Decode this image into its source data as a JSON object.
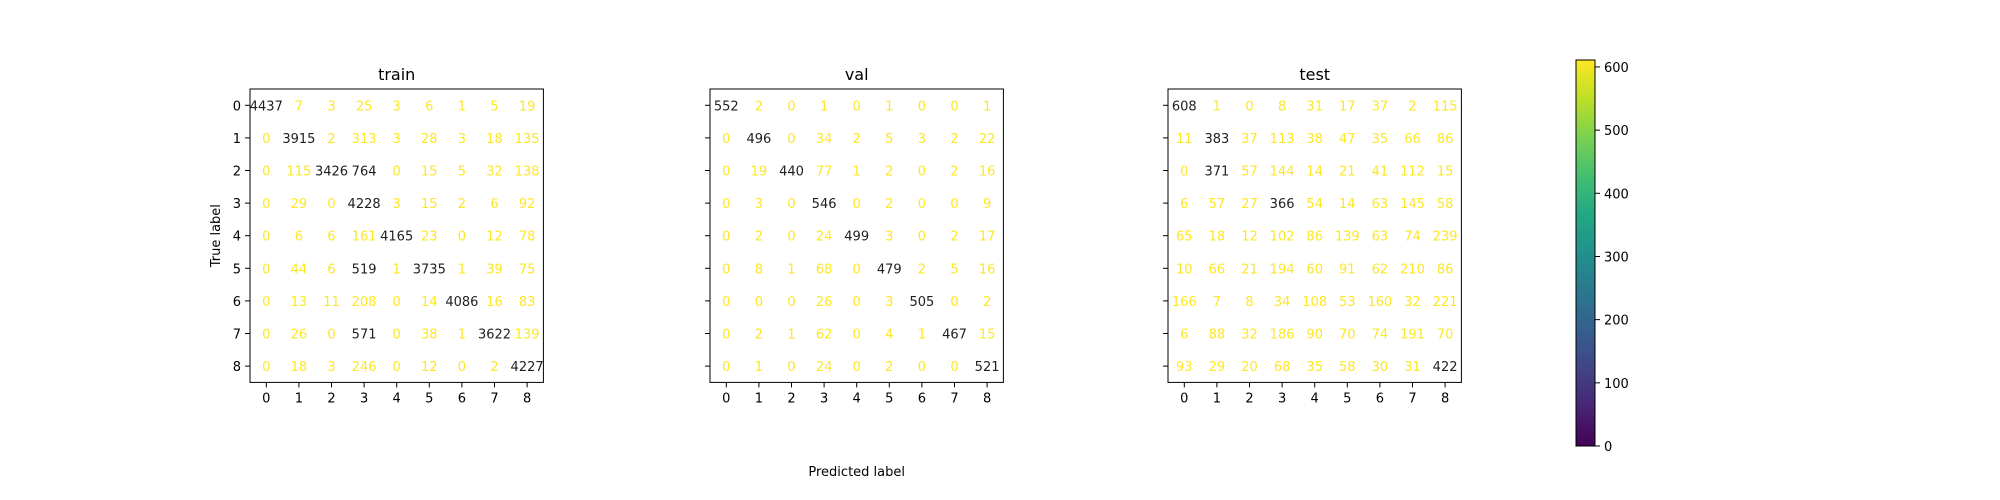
{
  "chart_data": [
    {
      "type": "heatmap",
      "title": "train",
      "x_ticks": [
        "0",
        "1",
        "2",
        "3",
        "4",
        "5",
        "6",
        "7",
        "8"
      ],
      "y_ticks": [
        "0",
        "1",
        "2",
        "3",
        "4",
        "5",
        "6",
        "7",
        "8"
      ],
      "xlabel": "",
      "ylabel": "True label",
      "matrix": [
        [
          4437,
          7,
          3,
          25,
          3,
          6,
          1,
          5,
          19
        ],
        [
          0,
          3915,
          2,
          313,
          3,
          28,
          3,
          18,
          135
        ],
        [
          0,
          115,
          3426,
          764,
          0,
          15,
          5,
          32,
          138
        ],
        [
          0,
          29,
          0,
          4228,
          3,
          15,
          2,
          6,
          92
        ],
        [
          0,
          6,
          6,
          161,
          4165,
          23,
          0,
          12,
          78
        ],
        [
          0,
          44,
          6,
          519,
          1,
          3735,
          1,
          39,
          75
        ],
        [
          0,
          13,
          11,
          208,
          0,
          14,
          4086,
          16,
          83
        ],
        [
          0,
          26,
          0,
          571,
          0,
          38,
          1,
          3622,
          139
        ],
        [
          0,
          18,
          3,
          246,
          0,
          12,
          0,
          2,
          4227
        ]
      ]
    },
    {
      "type": "heatmap",
      "title": "val",
      "x_ticks": [
        "0",
        "1",
        "2",
        "3",
        "4",
        "5",
        "6",
        "7",
        "8"
      ],
      "y_ticks": [],
      "xlabel": "Predicted label",
      "ylabel": "",
      "matrix": [
        [
          552,
          2,
          0,
          1,
          0,
          1,
          0,
          0,
          1
        ],
        [
          0,
          496,
          0,
          34,
          2,
          5,
          3,
          2,
          22
        ],
        [
          0,
          19,
          440,
          77,
          1,
          2,
          0,
          2,
          16
        ],
        [
          0,
          3,
          0,
          546,
          0,
          2,
          0,
          0,
          9
        ],
        [
          0,
          2,
          0,
          24,
          499,
          3,
          0,
          2,
          17
        ],
        [
          0,
          8,
          1,
          68,
          0,
          479,
          2,
          5,
          16
        ],
        [
          0,
          0,
          0,
          26,
          0,
          3,
          505,
          0,
          2
        ],
        [
          0,
          2,
          1,
          62,
          0,
          4,
          1,
          467,
          15
        ],
        [
          0,
          1,
          0,
          24,
          0,
          2,
          0,
          0,
          521
        ]
      ]
    },
    {
      "type": "heatmap",
      "title": "test",
      "x_ticks": [
        "0",
        "1",
        "2",
        "3",
        "4",
        "5",
        "6",
        "7",
        "8"
      ],
      "y_ticks": [],
      "xlabel": "",
      "ylabel": "",
      "matrix": [
        [
          608,
          1,
          0,
          8,
          31,
          17,
          37,
          2,
          115
        ],
        [
          11,
          383,
          37,
          113,
          38,
          47,
          35,
          66,
          86
        ],
        [
          0,
          371,
          57,
          144,
          14,
          21,
          41,
          112,
          15
        ],
        [
          6,
          57,
          27,
          366,
          54,
          14,
          63,
          145,
          58
        ],
        [
          65,
          18,
          12,
          102,
          86,
          139,
          63,
          74,
          239
        ],
        [
          10,
          66,
          21,
          194,
          60,
          91,
          62,
          210,
          86
        ],
        [
          166,
          7,
          8,
          34,
          108,
          53,
          160,
          32,
          221
        ],
        [
          6,
          88,
          32,
          186,
          90,
          70,
          74,
          191,
          70
        ],
        [
          93,
          29,
          20,
          68,
          35,
          58,
          30,
          31,
          422
        ]
      ]
    }
  ],
  "colorbar": {
    "min": 0,
    "max": 611,
    "ticks": [
      0,
      100,
      200,
      300,
      400,
      500,
      600
    ],
    "colormap": "viridis"
  }
}
